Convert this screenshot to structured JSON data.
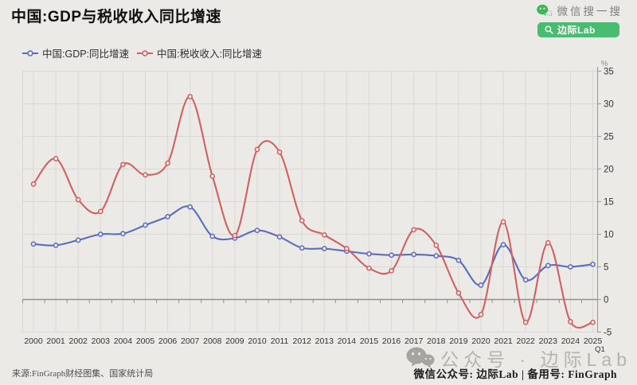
{
  "title": "中国:GDP与税收收入同比增速",
  "wechat_search": {
    "brand_label": "微信搜一搜",
    "query": "边际Lab",
    "green": "#49BC72"
  },
  "chart_data": {
    "type": "line",
    "smooth": true,
    "grid": true,
    "legend_position": "top-left",
    "title": "中国:GDP与税收收入同比增速",
    "categories": [
      "2000",
      "2001",
      "2002",
      "2003",
      "2004",
      "2005",
      "2006",
      "2007",
      "2008",
      "2009",
      "2010",
      "2011",
      "2012",
      "2013",
      "2014",
      "2015",
      "2016",
      "2017",
      "2018",
      "2019",
      "2020",
      "2021",
      "2022",
      "2023",
      "2024",
      "2025"
    ],
    "last_category_sub_label": "Q1",
    "y_unit": "%",
    "ylim": [
      -5,
      35
    ],
    "y_ticks": [
      35,
      30,
      25,
      20,
      15,
      10,
      5,
      0,
      -5
    ],
    "series": [
      {
        "name": "中国:GDP:同比增速",
        "color": "#5A6CBE",
        "values": [
          8.5,
          8.3,
          9.1,
          10.0,
          10.1,
          11.4,
          12.7,
          14.2,
          9.7,
          9.4,
          10.6,
          9.6,
          7.9,
          7.8,
          7.4,
          7.0,
          6.8,
          6.9,
          6.7,
          6.0,
          2.2,
          8.4,
          3.0,
          5.2,
          5.0,
          5.4
        ]
      },
      {
        "name": "中国:税收收入:同比增速",
        "color": "#D2605E",
        "values": [
          17.7,
          21.6,
          15.3,
          13.5,
          20.7,
          19.1,
          20.9,
          31.1,
          18.9,
          9.8,
          23.0,
          22.6,
          12.1,
          9.9,
          7.8,
          4.8,
          4.4,
          10.7,
          8.3,
          1.0,
          -2.3,
          11.9,
          -3.5,
          8.7,
          -3.4,
          -3.5
        ]
      }
    ]
  },
  "watermark": {
    "text": "公众号 · 边际Lab"
  },
  "footer": {
    "source": "来源:FinGraph财经图集、国家统计局",
    "right": "微信公众号: 边际Lab | 备用号: FinGraph"
  },
  "colors": {
    "background": "#ECEAE7",
    "gridline": "#DAD8D4",
    "zero_axis": "#93908D",
    "right_axis": "#9C9A97",
    "gdp_line": "#5A6CBE",
    "tax_line": "#D2605E"
  }
}
